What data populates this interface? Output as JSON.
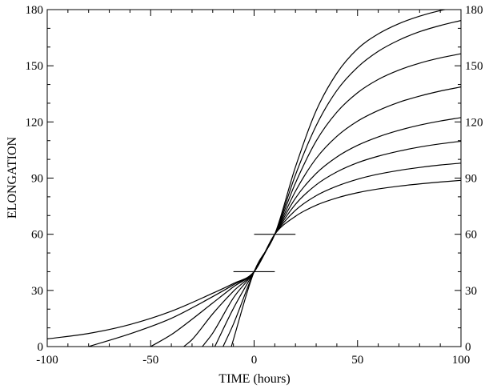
{
  "chart_data": {
    "type": "line",
    "xlabel": "TIME (hours)",
    "ylabel": "ELONGATION",
    "xlim": [
      -100,
      100
    ],
    "ylim": [
      0,
      180
    ],
    "x_ticks": [
      -100,
      -50,
      0,
      50,
      100
    ],
    "y_ticks": [
      0,
      30,
      60,
      90,
      120,
      150,
      180
    ],
    "x_tick_labels": [
      "-100",
      "-50",
      "0",
      "50",
      "100"
    ],
    "y_tick_labels": [
      "0",
      "30",
      "60",
      "90",
      "120",
      "150",
      "180"
    ],
    "right_axis_labels": true,
    "grid": false,
    "line_color": "#000000",
    "markers": [
      {
        "x": [
          -10,
          10
        ],
        "y": [
          40,
          40
        ]
      },
      {
        "x": [
          0,
          20
        ],
        "y": [
          60,
          60
        ]
      }
    ],
    "series": [
      {
        "x": [
          -100,
          -80,
          -60,
          -40,
          -20,
          -10,
          0,
          10,
          20,
          30,
          40,
          50,
          60,
          70,
          80,
          90,
          100
        ],
        "y": [
          4.1,
          7,
          11.8,
          18.9,
          28.5,
          33.7,
          40,
          60,
          69.6,
          75.5,
          79.4,
          82.2,
          84.2,
          85.7,
          86.9,
          87.9,
          88.8
        ]
      },
      {
        "x": [
          -80,
          -60,
          -40,
          -20,
          -10,
          0,
          10,
          20,
          30,
          40,
          50,
          60,
          70,
          80,
          90,
          100
        ],
        "y": [
          0,
          6.8,
          15.1,
          26.7,
          33,
          40,
          60,
          72.8,
          80.6,
          85.7,
          89.4,
          92.1,
          94.1,
          95.7,
          97,
          98
        ]
      },
      {
        "x": [
          -50,
          -40,
          -30,
          -20,
          -10,
          0,
          10,
          20,
          30,
          40,
          50,
          60,
          70,
          80,
          90,
          100
        ],
        "y": [
          0,
          6.4,
          14.6,
          23.3,
          31.9,
          40,
          60,
          76,
          86.4,
          93.3,
          98.2,
          101.7,
          104.4,
          106.6,
          108.3,
          109.7
        ]
      },
      {
        "x": [
          -34,
          -30,
          -20,
          -10,
          0,
          10,
          20,
          30,
          40,
          50,
          60,
          70,
          80,
          90,
          100
        ],
        "y": [
          0,
          3.7,
          17.5,
          29.6,
          40,
          60,
          79.3,
          92.5,
          101.3,
          107.5,
          112,
          115.5,
          118.3,
          120.5,
          122.3
        ]
      },
      {
        "x": [
          -25,
          -20,
          -10,
          0,
          10,
          20,
          30,
          40,
          50,
          60,
          70,
          80,
          90,
          100
        ],
        "y": [
          0,
          7.2,
          26,
          40,
          60,
          83,
          100.5,
          112.3,
          120.4,
          126.1,
          130.5,
          133.8,
          136.5,
          138.7
        ]
      },
      {
        "x": [
          -19,
          -10,
          0,
          10,
          20,
          30,
          40,
          50,
          60,
          70,
          80,
          90,
          100
        ],
        "y": [
          0,
          20.4,
          40,
          60,
          87.4,
          109.8,
          125.2,
          135.6,
          142.7,
          147.7,
          151.4,
          154.2,
          156.4
        ]
      },
      {
        "x": [
          -15,
          -10,
          0,
          10,
          20,
          30,
          40,
          50,
          60,
          70,
          80,
          90,
          100
        ],
        "y": [
          0,
          12,
          40,
          60,
          91.7,
          118,
          136.8,
          149.2,
          157.7,
          163.7,
          168.2,
          171.5,
          174.2
        ]
      },
      {
        "x": [
          -11,
          0,
          10,
          20,
          30,
          40,
          50,
          60,
          70,
          80,
          90,
          100
        ],
        "y": [
          0,
          40,
          60,
          96,
          126,
          146,
          159,
          167,
          172.5,
          176.5,
          179.5,
          181.5
        ]
      }
    ]
  }
}
